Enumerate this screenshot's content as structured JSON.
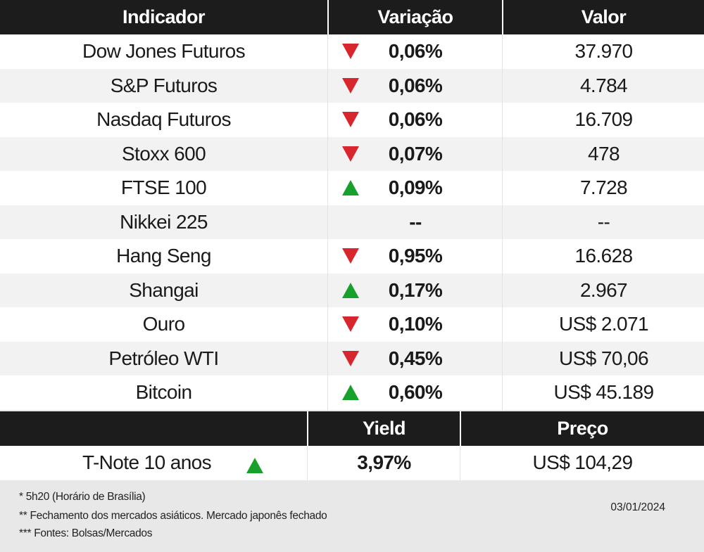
{
  "table1": {
    "headers": {
      "indicator": "Indicador",
      "change": "Variação",
      "value": "Valor"
    },
    "rows": [
      {
        "name": "Dow Jones Futuros",
        "change": "0,06%",
        "direction": "down",
        "value": "37.970"
      },
      {
        "name": "S&P Futuros",
        "change": "0,06%",
        "direction": "down",
        "value": "4.784"
      },
      {
        "name": "Nasdaq Futuros",
        "change": "0,06%",
        "direction": "down",
        "value": "16.709"
      },
      {
        "name": "Stoxx 600",
        "change": "0,07%",
        "direction": "down",
        "value": "478"
      },
      {
        "name": "FTSE 100",
        "change": "0,09%",
        "direction": "up",
        "value": "7.728"
      },
      {
        "name": "Nikkei 225",
        "change": "--",
        "direction": "none",
        "value": "--"
      },
      {
        "name": "Hang Seng",
        "change": "0,95%",
        "direction": "down",
        "value": "16.628"
      },
      {
        "name": "Shangai",
        "change": "0,17%",
        "direction": "up",
        "value": "2.967"
      },
      {
        "name": "Ouro",
        "change": "0,10%",
        "direction": "down",
        "value": "US$ 2.071"
      },
      {
        "name": "Petróleo WTI",
        "change": "0,45%",
        "direction": "down",
        "value": "US$ 70,06"
      },
      {
        "name": "Bitcoin",
        "change": "0,60%",
        "direction": "up",
        "value": "US$ 45.189"
      }
    ]
  },
  "table2": {
    "headers": {
      "indicator": "",
      "yield": "Yield",
      "price": "Preço"
    },
    "row": {
      "name": "T-Note 10 anos",
      "direction": "up",
      "yield": "3,97%",
      "price": "US$ 104,29"
    }
  },
  "footnotes": [
    "* 5h20 (Horário de Brasília)",
    "** Fechamento dos mercados asiáticos. Mercado japonês fechado",
    "*** Fontes: Bolsas/Mercados"
  ],
  "date": "03/01/2024",
  "colors": {
    "header_bg": "#1c1c1c",
    "down": "#d7262e",
    "up": "#17a02c",
    "row_alt": "#f2f2f2"
  }
}
